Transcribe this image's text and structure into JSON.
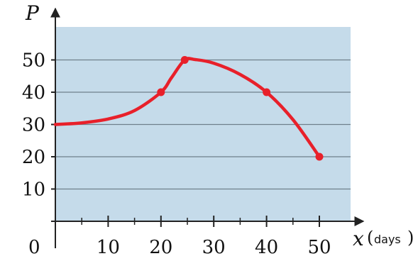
{
  "chart_data": {
    "type": "line",
    "title": "",
    "xlabel": "x",
    "xunit": "days",
    "ylabel": "P",
    "origin_label": "0",
    "xlim": [
      0,
      56
    ],
    "ylim": [
      0,
      60
    ],
    "xticks": [
      10,
      20,
      30,
      40,
      50
    ],
    "yticks": [
      10,
      20,
      30,
      40,
      50
    ],
    "x_minor_ticks": [
      5,
      15,
      25,
      35,
      45
    ],
    "grid": "horizontal",
    "plot_background": "#c5dbea",
    "line_color": "#e8202a",
    "series": [
      {
        "curve": [
          [
            0,
            30
          ],
          [
            5,
            30.5
          ],
          [
            10,
            31.7
          ],
          [
            15,
            34.3
          ],
          [
            20,
            40
          ],
          [
            22,
            44.5
          ],
          [
            24.5,
            50
          ],
          [
            26.5,
            50.1
          ],
          [
            30,
            49
          ],
          [
            35,
            45.5
          ],
          [
            40,
            40
          ],
          [
            45,
            31.5
          ],
          [
            50,
            20
          ]
        ],
        "points": [
          [
            20,
            40
          ],
          [
            24.5,
            50
          ],
          [
            40,
            40
          ],
          [
            50,
            20
          ]
        ]
      }
    ]
  }
}
